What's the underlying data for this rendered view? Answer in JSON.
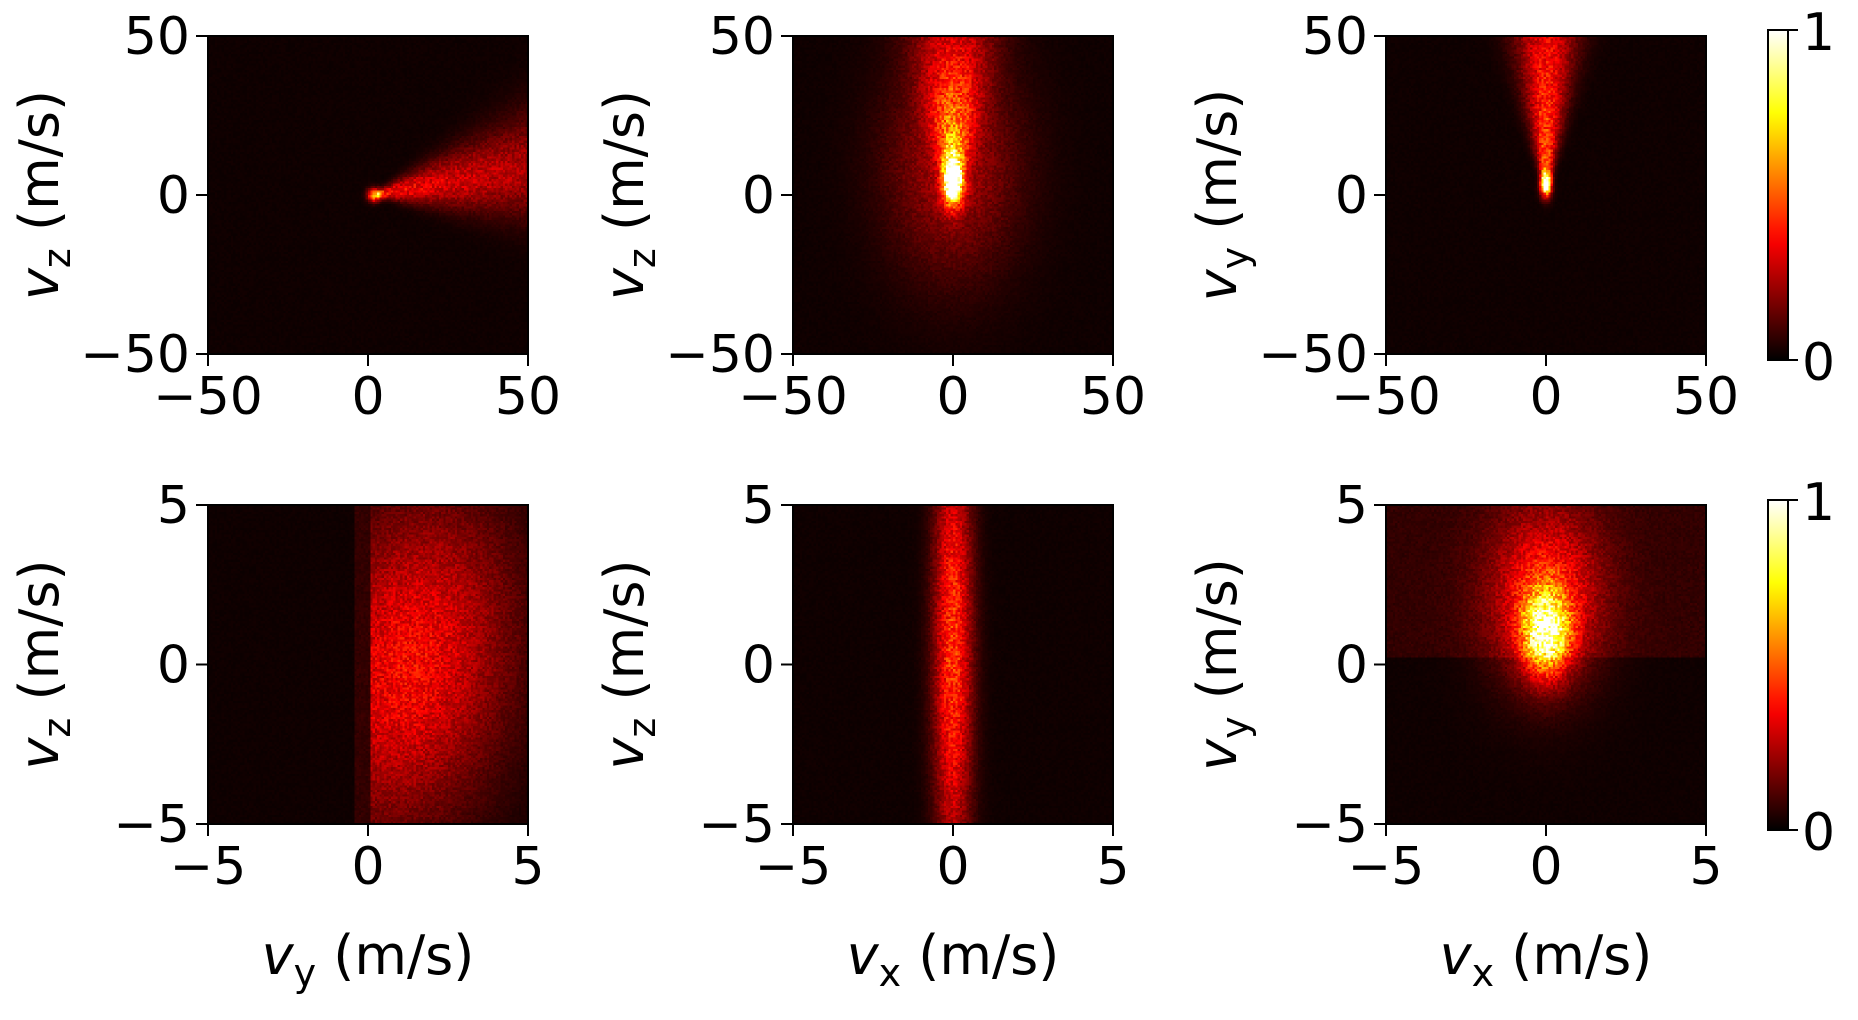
{
  "colors": {
    "colormap": "hot",
    "stops": [
      "#000000",
      "#1a0100",
      "#5a1407",
      "#a8331a",
      "#ea6a2a",
      "#fbb23a",
      "#fff67a",
      "#ffffff"
    ]
  },
  "chart_data": [
    {
      "type": "heatmap",
      "panel": "top-left",
      "xlim": [
        -50,
        50
      ],
      "ylim": [
        -50,
        50
      ],
      "xticks": [
        -50,
        0,
        50
      ],
      "yticks": [
        -50,
        0,
        50
      ],
      "xtick_labels": [
        "−50",
        "0",
        "50"
      ],
      "ytick_labels": [
        "−50",
        "0",
        "50"
      ],
      "ylabel_main": "v",
      "ylabel_sub": "z",
      "ylabel_unit": " (m/s)",
      "xlabel_main": "",
      "xlabel_sub": "",
      "xlabel_unit": "",
      "value_range": [
        0,
        1
      ],
      "features": [
        {
          "kind": "hotspot",
          "x": 2,
          "y": 0,
          "sx": 1.4,
          "sy": 1.4,
          "amp": 0.62
        },
        {
          "kind": "fan",
          "x0": 2,
          "y0": 0,
          "dir": "+x",
          "angle_deg": 18,
          "axis_angle_deg": 10,
          "length": 48,
          "amp": 0.38,
          "decay": 90
        }
      ]
    },
    {
      "type": "heatmap",
      "panel": "top-middle",
      "xlim": [
        -50,
        50
      ],
      "ylim": [
        -50,
        50
      ],
      "xticks": [
        -50,
        0,
        50
      ],
      "yticks": [
        -50,
        0,
        50
      ],
      "xtick_labels": [
        "−50",
        "0",
        "50"
      ],
      "ytick_labels": [
        "−50",
        "0",
        "50"
      ],
      "ylabel_main": "v",
      "ylabel_sub": "z",
      "ylabel_unit": " (m/s)",
      "xlabel_main": "",
      "xlabel_sub": "",
      "xlabel_unit": "",
      "value_range": [
        0,
        1
      ],
      "features": [
        {
          "kind": "hotspot",
          "x": 0,
          "y": 4,
          "sx": 2.2,
          "sy": 5,
          "amp": 0.95
        },
        {
          "kind": "fan",
          "x0": 0,
          "y0": -2,
          "dir": "+y",
          "angle_deg": 14,
          "axis_angle_deg": 0,
          "length": 52,
          "amp": 0.55,
          "decay": 60
        },
        {
          "kind": "glow",
          "x": 0,
          "y": 10,
          "sx": 14,
          "sy": 24,
          "amp": 0.22
        }
      ]
    },
    {
      "type": "heatmap",
      "panel": "top-right",
      "xlim": [
        -50,
        50
      ],
      "ylim": [
        -50,
        50
      ],
      "xticks": [
        -50,
        0,
        50
      ],
      "yticks": [
        -50,
        0,
        50
      ],
      "xtick_labels": [
        "−50",
        "0",
        "50"
      ],
      "ytick_labels": [
        "−50",
        "0",
        "50"
      ],
      "ylabel_main": "v",
      "ylabel_sub": "y",
      "ylabel_unit": " (m/s)",
      "xlabel_main": "",
      "xlabel_sub": "",
      "xlabel_unit": "",
      "value_range": [
        0,
        1
      ],
      "features": [
        {
          "kind": "hotspot",
          "x": 0,
          "y": 3,
          "sx": 1.2,
          "sy": 2.5,
          "amp": 0.9
        },
        {
          "kind": "fan",
          "x0": 0,
          "y0": 1,
          "dir": "+y",
          "angle_deg": 11,
          "axis_angle_deg": 0,
          "length": 52,
          "amp": 0.55,
          "decay": 90
        }
      ]
    },
    {
      "type": "heatmap",
      "panel": "bottom-left",
      "xlim": [
        -5,
        5
      ],
      "ylim": [
        -5,
        5
      ],
      "xticks": [
        -5,
        0,
        5
      ],
      "yticks": [
        -5,
        0,
        5
      ],
      "xtick_labels": [
        "−5",
        "0",
        "5"
      ],
      "ytick_labels": [
        "−5",
        "0",
        "5"
      ],
      "ylabel_main": "v",
      "ylabel_sub": "z",
      "ylabel_unit": " (m/s)",
      "xlabel_main": "v",
      "xlabel_sub": "y",
      "xlabel_unit": " (m/s)",
      "value_range": [
        0,
        1
      ],
      "features": [
        {
          "kind": "halfplane",
          "x_from": 0.1,
          "center_x": 1.3,
          "sx": 1.7,
          "sy": 3.6,
          "amp": 0.34,
          "tilt": 0.12
        }
      ]
    },
    {
      "type": "heatmap",
      "panel": "bottom-middle",
      "xlim": [
        -5,
        5
      ],
      "ylim": [
        -5,
        5
      ],
      "xticks": [
        -5,
        0,
        5
      ],
      "yticks": [
        -5,
        0,
        5
      ],
      "xtick_labels": [
        "−5",
        "0",
        "5"
      ],
      "ytick_labels": [
        "−5",
        "0",
        "5"
      ],
      "ylabel_main": "v",
      "ylabel_sub": "z",
      "ylabel_unit": " (m/s)",
      "xlabel_main": "v",
      "xlabel_sub": "x",
      "xlabel_unit": " (m/s)",
      "value_range": [
        0,
        1
      ],
      "features": [
        {
          "kind": "band",
          "x": 0,
          "sx": 0.42,
          "sy": 3.8,
          "y0": 0.5,
          "amp": 0.42
        }
      ]
    },
    {
      "type": "heatmap",
      "panel": "bottom-right",
      "xlim": [
        -5,
        5
      ],
      "ylim": [
        -5,
        5
      ],
      "xticks": [
        -5,
        0,
        5
      ],
      "yticks": [
        -5,
        0,
        5
      ],
      "xtick_labels": [
        "−5",
        "0",
        "5"
      ],
      "ytick_labels": [
        "−5",
        "0",
        "5"
      ],
      "ylabel_main": "v",
      "ylabel_sub": "y",
      "ylabel_unit": " (m/s)",
      "xlabel_main": "v",
      "xlabel_sub": "x",
      "xlabel_unit": " (m/s)",
      "value_range": [
        0,
        1
      ],
      "features": [
        {
          "kind": "hotspot",
          "x": 0,
          "y": 1.0,
          "sx": 0.5,
          "sy": 0.9,
          "amp": 0.75
        },
        {
          "kind": "glow",
          "x": 0,
          "y": 2.2,
          "sx": 1.2,
          "sy": 1.9,
          "amp": 0.35
        },
        {
          "kind": "floor",
          "y_from": 0.2,
          "amp": 0.05
        }
      ]
    }
  ],
  "colorbars": [
    {
      "row": "top",
      "min_label": "0",
      "max_label": "1",
      "range": [
        0,
        1
      ]
    },
    {
      "row": "bottom",
      "min_label": "0",
      "max_label": "1",
      "range": [
        0,
        1
      ]
    }
  ]
}
